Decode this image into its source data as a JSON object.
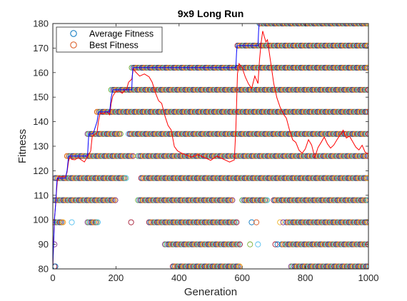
{
  "chart_data": {
    "type": "scatter",
    "title": "9x9 Long Run",
    "xlabel": "Generation",
    "ylabel": "Fitness",
    "xlim": [
      0,
      1000
    ],
    "ylim": [
      80,
      180
    ],
    "xticks": [
      0,
      200,
      400,
      600,
      800,
      1000
    ],
    "yticks": [
      80,
      90,
      100,
      110,
      120,
      130,
      140,
      150,
      160,
      170,
      180
    ],
    "grid": false,
    "legend_position": "top-left",
    "marker_colors": [
      "#0072BD",
      "#D95319",
      "#EDB120",
      "#7E2F8E",
      "#77AC30",
      "#4DBEEE",
      "#A2142F"
    ],
    "population_levels": [
      {
        "y": 180,
        "segments": [
          [
            655,
            1000
          ]
        ]
      },
      {
        "y": 171,
        "segments": [
          [
            585,
            1000
          ]
        ]
      },
      {
        "y": 162,
        "segments": [
          [
            250,
            1000
          ]
        ]
      },
      {
        "y": 153,
        "segments": [
          [
            185,
            1000
          ]
        ]
      },
      {
        "y": 144,
        "segments": [
          [
            140,
            1000
          ]
        ]
      },
      {
        "y": 135,
        "segments": [
          [
            110,
            215
          ],
          [
            240,
            1000
          ]
        ]
      },
      {
        "y": 126,
        "segments": [
          [
            45,
            255
          ],
          [
            270,
            1000
          ]
        ]
      },
      {
        "y": 117,
        "segments": [
          [
            5,
            235
          ],
          [
            280,
            1000
          ]
        ]
      },
      {
        "y": 108,
        "segments": [
          [
            0,
            200
          ],
          [
            270,
            570
          ],
          [
            600,
            680
          ],
          [
            700,
            1000
          ]
        ]
      },
      {
        "y": 99,
        "segments": [
          [
            0,
            35
          ],
          [
            110,
            145
          ],
          [
            305,
            585
          ],
          [
            740,
            1000
          ]
        ],
        "points": [
          60,
          248,
          630,
          645,
          720,
          730
        ]
      },
      {
        "y": 90,
        "segments": [
          [
            355,
            595
          ],
          [
            725,
            1000
          ]
        ],
        "points": [
          5,
          625,
          650,
          705,
          712
        ]
      },
      {
        "y": 81,
        "segments": [
          [
            380,
            595
          ],
          [
            755,
            1000
          ]
        ],
        "points": [
          5,
          8
        ]
      }
    ],
    "series": [
      {
        "name": "Average Fitness",
        "color": "#0000ff",
        "x": [
          0,
          5,
          10,
          12,
          14,
          16,
          40,
          45,
          50,
          52,
          54,
          56,
          58,
          110,
          112,
          114,
          116,
          118,
          120,
          125,
          130,
          140,
          145,
          150,
          152,
          154,
          156,
          158,
          180,
          185,
          190,
          195,
          200,
          250,
          252,
          254,
          256,
          258,
          580,
          582,
          584,
          586,
          588,
          650,
          652,
          654,
          656,
          1000
        ],
        "y": [
          81,
          100,
          108,
          114,
          117,
          117,
          117,
          120,
          126,
          126,
          126,
          126,
          126,
          126,
          131,
          135,
          135,
          135,
          135,
          135,
          136,
          140,
          144,
          144,
          144,
          144,
          144,
          144,
          144,
          150,
          153,
          153,
          153,
          153,
          159,
          162,
          162,
          162,
          162,
          168,
          171,
          171,
          171,
          171,
          177,
          180,
          180,
          180
        ]
      },
      {
        "name": "Best Fitness",
        "color": "#ff0000",
        "x": [
          0,
          5,
          10,
          14,
          20,
          40,
          45,
          50,
          55,
          60,
          70,
          80,
          90,
          100,
          110,
          120,
          125,
          130,
          140,
          145,
          150,
          160,
          170,
          180,
          185,
          190,
          200,
          210,
          220,
          235,
          240,
          250,
          255,
          260,
          275,
          290,
          305,
          315,
          325,
          335,
          345,
          355,
          365,
          375,
          385,
          395,
          405,
          420,
          440,
          460,
          480,
          500,
          520,
          540,
          560,
          575,
          580,
          585,
          590,
          600,
          610,
          620,
          630,
          640,
          650,
          655,
          660,
          665,
          670,
          675,
          680,
          690,
          700,
          710,
          720,
          730,
          740,
          750,
          760,
          770,
          780,
          790,
          800,
          810,
          820,
          830,
          840,
          850,
          860,
          870,
          880,
          890,
          900,
          910,
          920,
          930,
          940,
          950,
          960,
          970,
          980,
          990,
          1000
        ],
        "y": [
          81,
          100,
          108,
          115,
          117,
          117,
          119,
          124,
          126,
          125,
          125,
          126,
          125,
          124,
          126,
          128,
          134,
          134,
          135,
          140,
          143,
          143,
          144,
          143,
          148,
          151,
          153,
          153,
          152,
          154,
          156,
          157,
          161,
          160,
          158,
          159,
          158,
          156,
          152,
          149,
          148,
          143,
          139,
          137,
          130,
          128,
          127,
          126,
          125,
          126,
          125,
          124,
          126,
          125,
          124,
          125,
          138,
          160,
          164,
          162,
          158,
          155,
          153,
          158,
          155,
          165,
          172,
          177,
          175,
          173,
          174,
          165,
          156,
          150,
          146,
          143,
          141,
          136,
          132,
          131,
          128,
          127,
          129,
          133,
          131,
          126,
          130,
          132,
          134,
          131,
          129,
          130,
          132,
          134,
          136,
          133,
          134,
          132,
          130,
          129,
          131,
          128,
          127
        ]
      }
    ]
  }
}
